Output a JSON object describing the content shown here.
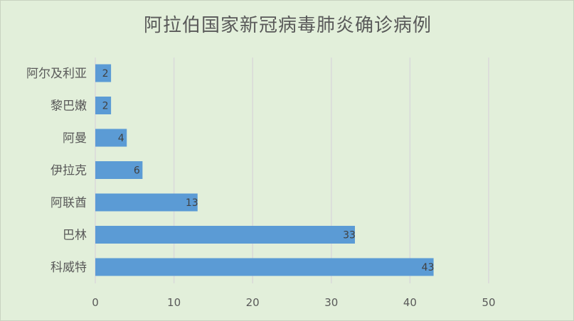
{
  "chart_data": {
    "type": "bar",
    "orientation": "horizontal",
    "title": "阿拉伯国家新冠病毒肺炎确诊病例",
    "categories": [
      "阿尔及利亚",
      "黎巴嫩",
      "阿曼",
      "伊拉克",
      "阿联酋",
      "巴林",
      "科威特"
    ],
    "values": [
      2,
      2,
      4,
      6,
      13,
      33,
      43
    ],
    "xlim": [
      0,
      50
    ],
    "xticks": [
      0,
      10,
      20,
      30,
      40,
      50
    ],
    "grid": "vertical",
    "legend": "none",
    "data_labels": "inside-end",
    "colors": {
      "bar": "#5b9bd5",
      "background": "#e2efda",
      "grid": "#d9d9d9",
      "text": "#595959"
    }
  }
}
